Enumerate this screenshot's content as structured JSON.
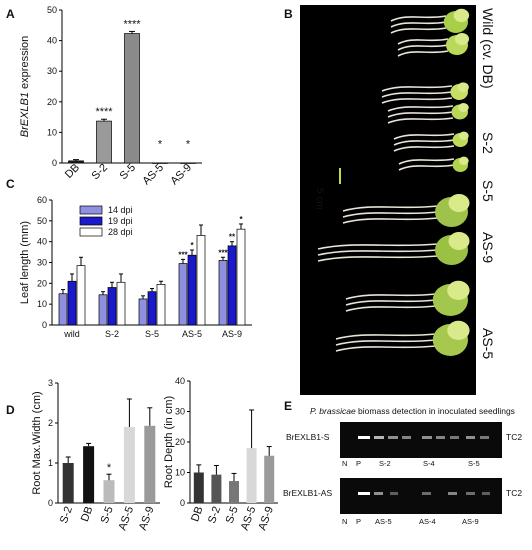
{
  "panels": {
    "a": "A",
    "b": "B",
    "c": "C",
    "d": "D",
    "e": "E"
  },
  "chart_data": [
    {
      "id": "A",
      "type": "bar",
      "ylabel_italic": "BrEXLB1",
      "ylabel_rest": " expression",
      "categories": [
        "DB",
        "S-2",
        "S-5",
        "AS-5",
        "AS-9"
      ],
      "values": [
        0.7,
        13.7,
        42.3,
        0.05,
        0.05
      ],
      "errors": [
        0.4,
        0.6,
        0.7,
        0,
        0
      ],
      "annotations": [
        "",
        "****",
        "****",
        "*",
        "*"
      ],
      "ylim": [
        0,
        50
      ],
      "yticks": [
        0,
        10,
        20,
        30,
        40,
        50
      ],
      "colors": [
        "#222222",
        "#9a9a9a",
        "#8a8a8a",
        "#666666",
        "#666666"
      ]
    },
    {
      "id": "C",
      "type": "bar",
      "ylabel": "Leaf length (mm)",
      "categories": [
        "wild",
        "S-2",
        "S-5",
        "AS-5",
        "AS-9"
      ],
      "series": [
        {
          "name": "14 dpi",
          "color": "#9090e0",
          "values": [
            15,
            14.5,
            12.5,
            29.5,
            31
          ],
          "errors": [
            2,
            1.5,
            1.5,
            2,
            1.5
          ]
        },
        {
          "name": "19 dpi",
          "color": "#1a1acc",
          "values": [
            21,
            18,
            16,
            33.5,
            38
          ],
          "errors": [
            3.5,
            2.5,
            1.5,
            2.5,
            2
          ]
        },
        {
          "name": "28 dpi",
          "color": "#ffffff",
          "values": [
            28.5,
            20.5,
            19.5,
            43,
            46
          ],
          "errors": [
            4,
            4,
            1.5,
            5,
            2.5
          ]
        }
      ],
      "annotations": [
        [
          "",
          "",
          ""
        ],
        [
          "",
          "",
          ""
        ],
        [
          "",
          "",
          ""
        ],
        [
          "***",
          "*",
          ""
        ],
        [
          "***",
          "**",
          "*"
        ]
      ],
      "ylim": [
        0,
        60
      ],
      "yticks": [
        0,
        10,
        20,
        30,
        40,
        50,
        60
      ]
    },
    {
      "id": "D1",
      "type": "bar",
      "ylabel": "Root Max.Width (cm)",
      "categories": [
        "S-2",
        "DB",
        "S-5",
        "AS-5",
        "AS-9"
      ],
      "values": [
        1.0,
        1.42,
        0.57,
        1.9,
        1.93
      ],
      "errors": [
        0.15,
        0.07,
        0.15,
        0.7,
        0.45
      ],
      "annotations": [
        "",
        "",
        "*",
        "",
        ""
      ],
      "colors": [
        "#333333",
        "#111111",
        "#bbbbbb",
        "#d8d8d8",
        "#9a9a9a"
      ],
      "ylim": [
        0,
        3
      ],
      "yticks": [
        0,
        1,
        2,
        3
      ]
    },
    {
      "id": "D2",
      "type": "bar",
      "ylabel": "Root Depth (in cm)",
      "categories": [
        "DB",
        "S-2",
        "S-5",
        "AS-5",
        "AS-9"
      ],
      "values": [
        10,
        9.3,
        7.2,
        18,
        15.5
      ],
      "errors": [
        2.5,
        3,
        2.5,
        12.5,
        3
      ],
      "colors": [
        "#333333",
        "#555555",
        "#777777",
        "#d8d8d8",
        "#9a9a9a"
      ],
      "ylim": [
        0,
        40
      ],
      "yticks": [
        0,
        10,
        20,
        30,
        40
      ]
    }
  ],
  "photo": {
    "labels": [
      "Wild (cv. DB)",
      "S-2",
      "S-5",
      "AS-9",
      "AS-5"
    ],
    "scale": "5 cm"
  },
  "gel": {
    "title_italic": "P. brassicae",
    "title_rest": " biomass detection in inoculated seedlings",
    "row1": {
      "label": "BrEXLB1-S",
      "tag": "TC2",
      "lanes": [
        "N",
        "P",
        "S-2",
        "S-4",
        "S-5"
      ]
    },
    "row2": {
      "label": "BrEXLB1-AS",
      "tag": "TC2",
      "lanes": [
        "N",
        "P",
        "AS-5",
        "AS-4",
        "AS-9"
      ]
    }
  }
}
